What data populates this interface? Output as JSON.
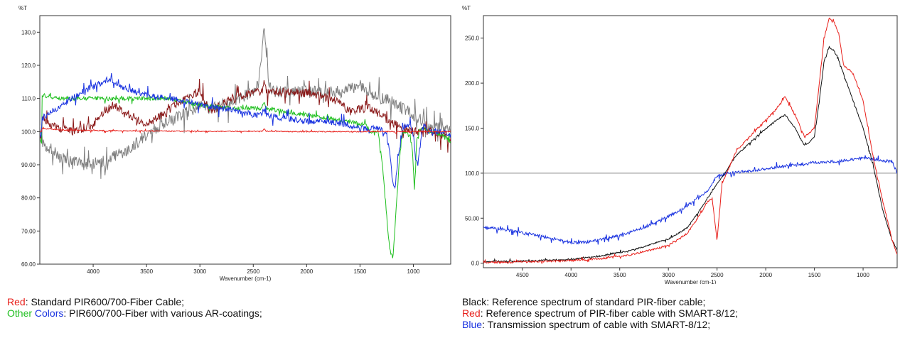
{
  "chart_data": [
    {
      "type": "line",
      "ylabel": "%T",
      "xlabel": "Wavenumber (cm-1)",
      "xlim": [
        4500,
        650
      ],
      "ylim": [
        60,
        135
      ],
      "yticks": [
        {
          "value": 130,
          "label": "130.0"
        },
        {
          "value": 120,
          "label": "120.0"
        },
        {
          "value": 110,
          "label": "110.0"
        },
        {
          "value": 100,
          "label": "100.0"
        },
        {
          "value": 90,
          "label": "90.00"
        },
        {
          "value": 80,
          "label": "80.00"
        },
        {
          "value": 70,
          "label": "70.00"
        },
        {
          "value": 60,
          "label": "60.00"
        }
      ],
      "xticks": [
        {
          "value": 4000,
          "label": "4000"
        },
        {
          "value": 3500,
          "label": "3500"
        },
        {
          "value": 3000,
          "label": "3000"
        },
        {
          "value": 2500,
          "label": "2500"
        },
        {
          "value": 2000,
          "label": "2000"
        },
        {
          "value": 1500,
          "label": "1500"
        },
        {
          "value": 1000,
          "label": "1000"
        }
      ],
      "series": [
        {
          "color": "#7f7f7f",
          "noise": 1.8,
          "x": [
            4480,
            4300,
            4100,
            3900,
            3700,
            3500,
            3300,
            3100,
            3000,
            2900,
            2700,
            2500,
            2450,
            2420,
            2400,
            2380,
            2350,
            2300,
            2200,
            2000,
            1800,
            1650,
            1500,
            1400,
            1300,
            1200,
            1100,
            1000,
            900,
            800,
            700
          ],
          "y": [
            97,
            92,
            90,
            91,
            94,
            99,
            103,
            106,
            108,
            107,
            109,
            112,
            114,
            124,
            133,
            125,
            114,
            112,
            112,
            112,
            112,
            112,
            114,
            111,
            110,
            109,
            107,
            105,
            103,
            101,
            101
          ]
        },
        {
          "color": "#8b1a1a",
          "noise": 1.3,
          "x": [
            4480,
            4400,
            4200,
            4000,
            3900,
            3800,
            3700,
            3500,
            3300,
            3200,
            3100,
            3000,
            2950,
            2900,
            2700,
            2500,
            2420,
            2400,
            2380,
            2300,
            2100,
            1900,
            1700,
            1600,
            1500,
            1400,
            1300,
            1200,
            1100,
            1000,
            900,
            800,
            700
          ],
          "y": [
            105,
            102,
            100,
            102,
            106,
            108,
            106,
            102,
            106,
            109,
            111,
            112,
            109,
            106,
            110,
            112,
            112,
            115,
            112,
            112,
            112,
            111,
            109,
            106,
            107,
            107,
            105,
            103,
            101,
            100,
            100,
            100,
            98
          ]
        },
        {
          "color": "#1fbf1f",
          "noise": 0.6,
          "x": [
            4480,
            4300,
            4100,
            3900,
            3700,
            3500,
            3300,
            3000,
            2700,
            2500,
            2420,
            2400,
            2380,
            2200,
            2000,
            1800,
            1600,
            1450,
            1400,
            1330,
            1290,
            1260,
            1220,
            1190,
            1170,
            1130,
            1100,
            1060,
            1030,
            1010,
            990,
            970,
            950,
            930,
            900,
            850,
            800,
            750,
            700,
            650
          ],
          "y": [
            111,
            110,
            110,
            110,
            110,
            110,
            110,
            108,
            107,
            107,
            107,
            109,
            107,
            106,
            105,
            104,
            103,
            102,
            100,
            100,
            90,
            78,
            64,
            62,
            72,
            92,
            100,
            100,
            98,
            95,
            82,
            97,
            100,
            101,
            101,
            100,
            100,
            99,
            99,
            97
          ]
        },
        {
          "color": "#1a33e0",
          "noise": 0.9,
          "x": [
            4480,
            4300,
            4100,
            3900,
            3850,
            3800,
            3700,
            3500,
            3300,
            3100,
            3000,
            2800,
            2600,
            2500,
            2420,
            2400,
            2380,
            2200,
            2000,
            1800,
            1600,
            1500,
            1400,
            1300,
            1250,
            1220,
            1190,
            1170,
            1150,
            1100,
            1060,
            1020,
            1000,
            980,
            960,
            920,
            900,
            850,
            800,
            750,
            700,
            650
          ],
          "y": [
            104,
            108,
            112,
            115,
            116,
            115,
            113,
            111,
            110,
            109,
            108,
            107,
            106,
            105,
            105,
            107,
            105,
            104,
            103,
            103,
            102,
            101,
            101,
            101,
            99,
            93,
            84,
            83,
            90,
            101,
            102,
            101,
            99,
            92,
            90,
            100,
            102,
            100,
            100,
            100,
            100,
            99
          ]
        },
        {
          "color": "#e8201b",
          "noise": 0.15,
          "x": [
            4480,
            4300,
            4000,
            3500,
            3000,
            2500,
            2420,
            2400,
            2380,
            2000,
            1500,
            1000,
            800,
            700,
            650
          ],
          "y": [
            101,
            100.5,
            100.3,
            100.2,
            100.1,
            100.1,
            100.1,
            100.8,
            100.1,
            100,
            100,
            100,
            100,
            100,
            100
          ]
        }
      ]
    },
    {
      "type": "line",
      "ylabel": "%T",
      "xlabel": "Wavenumber (cm-1)",
      "xlim": [
        4900,
        650
      ],
      "ylim": [
        -5,
        275
      ],
      "yticks": [
        {
          "value": 250,
          "label": "250.0"
        },
        {
          "value": 200,
          "label": "200.0"
        },
        {
          "value": 150,
          "label": "150.0"
        },
        {
          "value": 100,
          "label": "100.0"
        },
        {
          "value": 50,
          "label": "50.00"
        },
        {
          "value": 0,
          "label": "0.0"
        }
      ],
      "xticks": [
        {
          "value": 4500,
          "label": "4500"
        },
        {
          "value": 4000,
          "label": "4000"
        },
        {
          "value": 3500,
          "label": "3500"
        },
        {
          "value": 3000,
          "label": "3000"
        },
        {
          "value": 2500,
          "label": "2500"
        },
        {
          "value": 2000,
          "label": "2000"
        },
        {
          "value": 1500,
          "label": "1500"
        },
        {
          "value": 1000,
          "label": "1000"
        }
      ],
      "reference_line": 100,
      "series": [
        {
          "color": "#1a33e0",
          "noise": 1.6,
          "x": [
            4900,
            4700,
            4500,
            4300,
            4100,
            4000,
            3900,
            3800,
            3600,
            3400,
            3200,
            3000,
            2800,
            2600,
            2500,
            2400,
            2200,
            2000,
            1800,
            1600,
            1500,
            1400,
            1300,
            1200,
            1100,
            1000,
            900,
            800,
            700,
            650
          ],
          "y": [
            40,
            38,
            34,
            30,
            25,
            23,
            23,
            24,
            28,
            34,
            42,
            52,
            64,
            80,
            97,
            100,
            102,
            105,
            108,
            110,
            112,
            112,
            113,
            114,
            115,
            117,
            116,
            114,
            113,
            100
          ]
        },
        {
          "color": "#111111",
          "noise": 0.8,
          "x": [
            4900,
            4600,
            4300,
            4000,
            3700,
            3400,
            3200,
            3000,
            2900,
            2800,
            2700,
            2600,
            2550,
            2500,
            2450,
            2300,
            2100,
            1900,
            1800,
            1700,
            1600,
            1500,
            1450,
            1400,
            1350,
            1300,
            1250,
            1200,
            1100,
            1000,
            900,
            800,
            700,
            650
          ],
          "y": [
            2,
            2,
            3,
            4,
            8,
            14,
            20,
            27,
            33,
            40,
            55,
            72,
            80,
            88,
            95,
            120,
            140,
            158,
            165,
            150,
            130,
            140,
            180,
            225,
            240,
            236,
            225,
            210,
            180,
            150,
            110,
            60,
            25,
            15
          ]
        },
        {
          "color": "#e8201b",
          "noise": 1.0,
          "x": [
            4900,
            4600,
            4300,
            4000,
            3700,
            3400,
            3200,
            3000,
            2900,
            2800,
            2700,
            2600,
            2550,
            2500,
            2450,
            2300,
            2100,
            1900,
            1800,
            1700,
            1600,
            1500,
            1450,
            1400,
            1350,
            1300,
            1250,
            1200,
            1100,
            1000,
            900,
            800,
            700,
            650
          ],
          "y": [
            1,
            1,
            2,
            3,
            5,
            9,
            14,
            20,
            26,
            34,
            50,
            68,
            72,
            25,
            88,
            125,
            148,
            170,
            185,
            165,
            140,
            150,
            200,
            250,
            272,
            268,
            255,
            220,
            210,
            180,
            120,
            70,
            25,
            10
          ]
        }
      ]
    }
  ],
  "captions": {
    "left": {
      "line1_red": "Red",
      "line1_rest": ": Standard PIR600/700-Fiber Cable;",
      "line2_other": "Other",
      "line2_colors": "Colors",
      "line2_rest": ":  PIR600/700-Fiber with various AR-coatings;"
    },
    "right": {
      "line1": "Black: Reference spectrum of  standard PIR-fiber cable;",
      "line2_red": "Red",
      "line2_rest": ": Reference spectrum of  PIR-fiber cable with SMART-8/12;",
      "line3_blue": "Blue",
      "line3_rest": ": Transmission spectrum of cable with SMART-8/12;"
    }
  }
}
